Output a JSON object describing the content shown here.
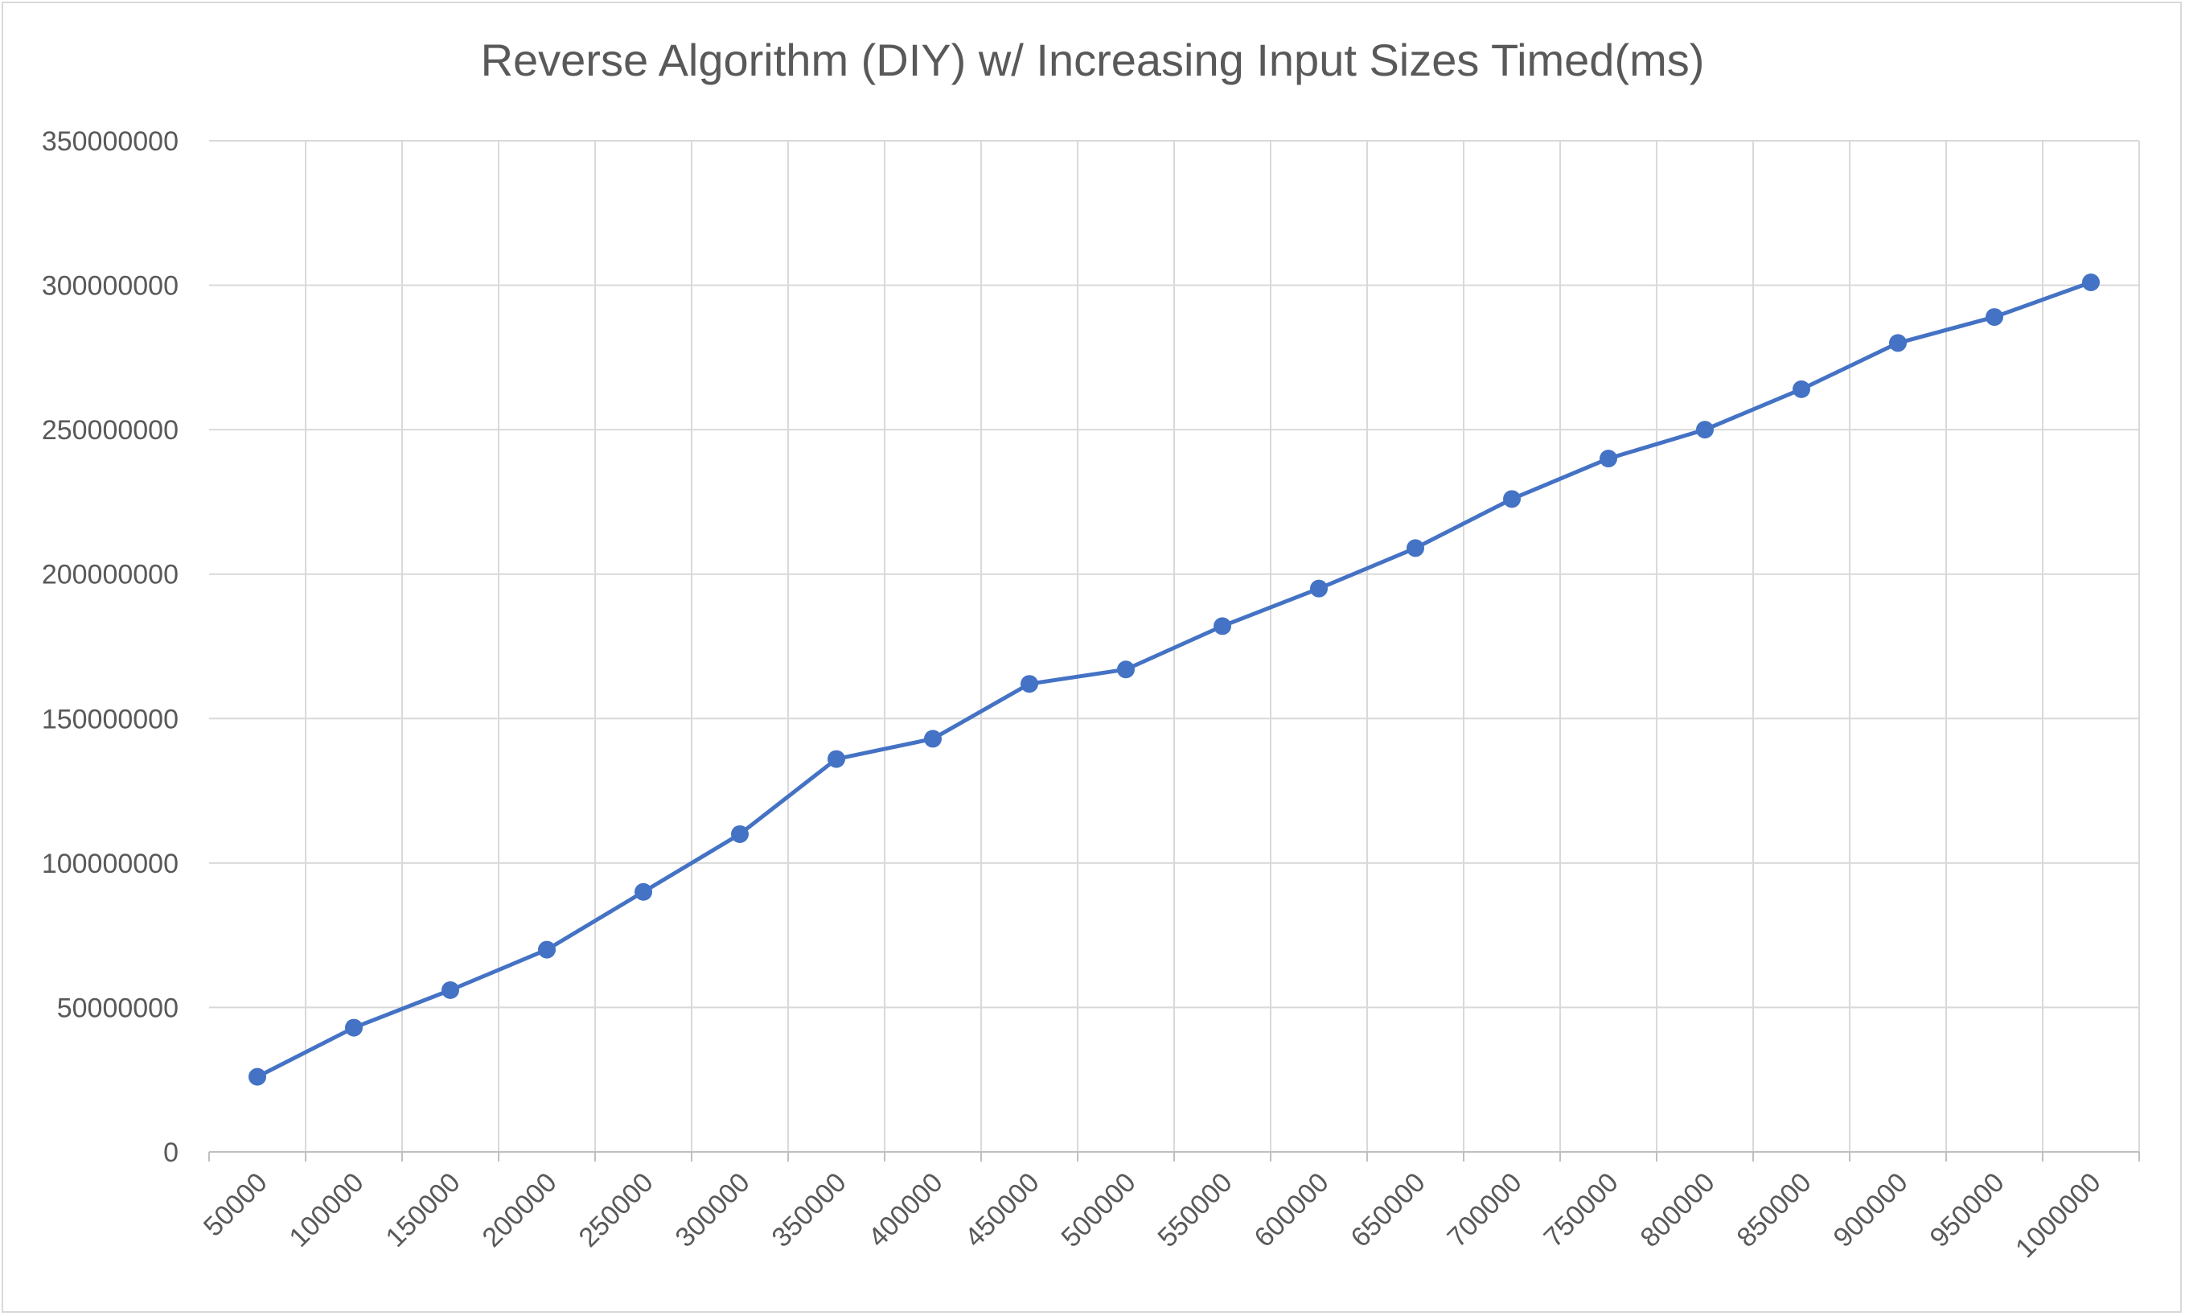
{
  "chart_data": {
    "type": "line",
    "title": "Reverse Algorithm (DIY) w/ Increasing Input Sizes Timed(ms)",
    "xlabel": "",
    "ylabel": "",
    "categories": [
      "50000",
      "100000",
      "150000",
      "200000",
      "250000",
      "300000",
      "350000",
      "400000",
      "450000",
      "500000",
      "550000",
      "600000",
      "650000",
      "700000",
      "750000",
      "800000",
      "850000",
      "900000",
      "950000",
      "1000000"
    ],
    "series": [
      {
        "values": [
          26000000,
          43000000,
          56000000,
          70000000,
          90000000,
          110000000,
          136000000,
          143000000,
          162000000,
          167000000,
          182000000,
          195000000,
          209000000,
          226000000,
          240000000,
          250000000,
          264000000,
          280000000,
          289000000,
          301000000
        ],
        "color": "#4472c4"
      }
    ],
    "ylim": [
      0,
      350000000
    ],
    "yticks": [
      "0",
      "50000000",
      "100000000",
      "150000000",
      "200000000",
      "250000000",
      "300000000",
      "350000000"
    ],
    "grid": true,
    "legend": "none"
  }
}
